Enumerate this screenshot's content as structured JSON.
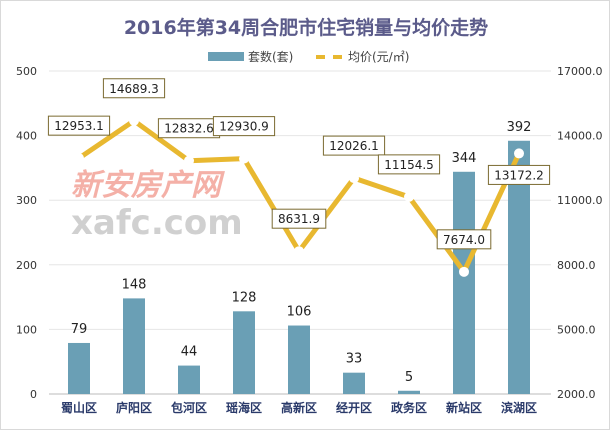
{
  "chart_data": {
    "type": "bar+line",
    "title": "2016年第34周合肥市住宅销量与均价走势",
    "categories": [
      "蜀山区",
      "庐阳区",
      "包河区",
      "瑶海区",
      "高新区",
      "经开区",
      "政务区",
      "新站区",
      "滨湖区"
    ],
    "series": [
      {
        "name": "套数(套)",
        "type": "bar",
        "axis": "left",
        "color": "#6a9fb5",
        "values": [
          79,
          148,
          44,
          128,
          106,
          33,
          5,
          344,
          392
        ]
      },
      {
        "name": "均价(元/㎡)",
        "type": "line",
        "axis": "right",
        "color": "#e8b830",
        "values": [
          12953.1,
          14689.3,
          12832.6,
          12930.9,
          8631.9,
          12026.1,
          11154.5,
          7674.0,
          13172.2
        ],
        "labels": [
          "12953.1",
          "14689.3",
          "12832.6",
          "12930.9",
          "8631.9",
          "12026.1",
          "11154.5",
          "7674.0",
          "13172.2"
        ]
      }
    ],
    "ylim_left": [
      0,
      500
    ],
    "yticks_left": [
      "0",
      "100",
      "200",
      "300",
      "400",
      "500"
    ],
    "ylim_right": [
      2000,
      17000
    ],
    "yticks_right": [
      "2000.0",
      "5000.0",
      "8000.0",
      "11000.0",
      "14000.0",
      "17000.0"
    ],
    "grid": true,
    "legend": "top-center",
    "title_color": "#5b5b8a"
  },
  "watermark": {
    "cn": "新安房产网",
    "en": "xafc.com"
  }
}
